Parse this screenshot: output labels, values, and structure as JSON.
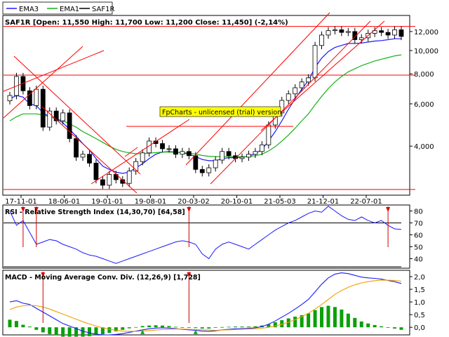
{
  "legend": [
    {
      "name": "EMA3",
      "color": "#1a1aff"
    },
    {
      "name": "EMA1",
      "color": "#18b018"
    },
    {
      "name": "SAF1R",
      "color": "#000000"
    }
  ],
  "header": "SAF1R [Open: 11,550  High: 11,700  Low: 11,200  Close: 11,450] (-2,14%)",
  "watermark": "FpCharts - unlicensed (trial) version",
  "rsi_title": "RSI - Relative Strength Index (14,30,70) [64,58]",
  "macd_title": "MACD - Moving Average Conv. Div. (12,26,9) [1,728]",
  "chart_data": [
    {
      "type": "candlestick",
      "title": "SAF1R [Open: 11,550  High: 11,700  Low: 11,200  Close: 11,450] (-2,14%)",
      "y_scale": "log",
      "ylim": [
        2500,
        14000
      ],
      "y_ticks": [
        4000,
        6000,
        8000,
        10000,
        12000
      ],
      "y_tick_labels": [
        "4,000",
        "6,000",
        "8,000",
        "10,000",
        "12,000"
      ],
      "x_tick_labels": [
        "17-11-01",
        "18-06-01",
        "19-01-01",
        "19-08-01",
        "20-03-02",
        "20-10-01",
        "21-05-03",
        "21-12-01",
        "22-07-01"
      ],
      "horizontal_lines": [
        12600,
        7900,
        2640
      ],
      "close": [
        6500,
        7800,
        6800,
        5900,
        6900,
        4800,
        5600,
        5100,
        5500,
        4300,
        3600,
        3700,
        3400,
        2900,
        2750,
        3050,
        2900,
        2800,
        3150,
        3450,
        3750,
        4200,
        4100,
        3900,
        3900,
        3700,
        3800,
        3650,
        3200,
        3100,
        3250,
        3500,
        3800,
        3650,
        3550,
        3600,
        3700,
        3800,
        4050,
        4900,
        5500,
        6200,
        6600,
        7000,
        7400,
        7700,
        10500,
        11600,
        12100,
        12200,
        11900,
        12000,
        11100,
        11300,
        11800,
        12100,
        11900,
        11600,
        12200,
        11450
      ],
      "series": [
        {
          "name": "EMA3",
          "values": [
            6300,
            6500,
            6400,
            6000,
            5900,
            5500,
            5300,
            5200,
            5000,
            4700,
            4400,
            4100,
            3850,
            3550,
            3300,
            3200,
            3120,
            3080,
            3120,
            3250,
            3380,
            3550,
            3700,
            3780,
            3800,
            3780,
            3750,
            3700,
            3620,
            3520,
            3480,
            3480,
            3550,
            3580,
            3580,
            3600,
            3640,
            3720,
            3880,
            4200,
            4600,
            5100,
            5700,
            6300,
            6900,
            7500,
            8500,
            9300,
            9900,
            10300,
            10500,
            10700,
            10700,
            10750,
            10850,
            10950,
            11000,
            11100,
            11200,
            11200
          ]
        },
        {
          "name": "EMA1",
          "values": [
            5100,
            5300,
            5450,
            5450,
            5450,
            5400,
            5300,
            5200,
            5100,
            4950,
            4800,
            4600,
            4450,
            4300,
            4150,
            4000,
            3880,
            3800,
            3750,
            3720,
            3720,
            3740,
            3760,
            3780,
            3780,
            3770,
            3760,
            3740,
            3700,
            3660,
            3630,
            3620,
            3620,
            3620,
            3610,
            3610,
            3620,
            3650,
            3700,
            3820,
            3980,
            4200,
            4450,
            4750,
            5100,
            5450,
            5950,
            6450,
            6950,
            7400,
            7800,
            8150,
            8400,
            8650,
            8850,
            9050,
            9200,
            9350,
            9500,
            9600
          ]
        }
      ]
    },
    {
      "type": "line",
      "title": "RSI - Relative Strength Index (14,30,70) [64,58]",
      "ylim": [
        32,
        85
      ],
      "y_ticks": [
        40,
        50,
        60,
        70,
        80
      ],
      "levels": [
        70,
        30
      ],
      "series": [
        {
          "name": "RSI",
          "values": [
            80,
            68,
            72,
            62,
            52,
            54,
            56,
            55,
            52,
            50,
            48,
            45,
            43,
            42,
            40,
            38,
            36,
            38,
            40,
            42,
            44,
            46,
            48,
            50,
            52,
            54,
            55,
            54,
            52,
            44,
            40,
            48,
            52,
            54,
            52,
            50,
            48,
            52,
            56,
            60,
            64,
            67,
            70,
            72,
            75,
            78,
            80,
            79,
            84,
            80,
            76,
            73,
            72,
            75,
            72,
            70,
            72,
            68,
            65,
            64.58
          ]
        }
      ]
    },
    {
      "type": "bar+line",
      "title": "MACD - Moving Average Conv. Div. (12,26,9) [1,728]",
      "ylim": [
        -0.3,
        2.25
      ],
      "y_ticks": [
        0.0,
        0.5,
        1.0,
        1.5,
        2.0
      ],
      "y_tick_labels": [
        "0,0",
        "0,5",
        "1,0",
        "1,5",
        "2,0"
      ],
      "series": [
        {
          "name": "MACD",
          "values": [
            1.0,
            1.05,
            0.95,
            0.9,
            0.75,
            0.6,
            0.45,
            0.3,
            0.15,
            0.05,
            -0.05,
            -0.15,
            -0.22,
            -0.27,
            -0.3,
            -0.3,
            -0.28,
            -0.25,
            -0.2,
            -0.15,
            -0.1,
            -0.06,
            -0.03,
            -0.02,
            -0.03,
            -0.05,
            -0.08,
            -0.1,
            -0.12,
            -0.15,
            -0.16,
            -0.14,
            -0.1,
            -0.08,
            -0.06,
            -0.05,
            -0.04,
            -0.02,
            0.03,
            0.12,
            0.25,
            0.4,
            0.55,
            0.72,
            0.9,
            1.1,
            1.4,
            1.7,
            1.95,
            2.1,
            2.15,
            2.12,
            2.05,
            1.98,
            1.95,
            1.93,
            1.9,
            1.85,
            1.8,
            1.728
          ]
        },
        {
          "name": "Signal",
          "values": [
            0.7,
            0.8,
            0.85,
            0.87,
            0.85,
            0.8,
            0.72,
            0.62,
            0.52,
            0.42,
            0.32,
            0.22,
            0.13,
            0.05,
            -0.02,
            -0.08,
            -0.12,
            -0.15,
            -0.16,
            -0.16,
            -0.15,
            -0.13,
            -0.11,
            -0.09,
            -0.08,
            -0.07,
            -0.07,
            -0.08,
            -0.09,
            -0.1,
            -0.11,
            -0.12,
            -0.11,
            -0.1,
            -0.09,
            -0.08,
            -0.07,
            -0.06,
            -0.04,
            0.0,
            0.05,
            0.12,
            0.2,
            0.3,
            0.42,
            0.55,
            0.72,
            0.9,
            1.1,
            1.3,
            1.45,
            1.58,
            1.68,
            1.75,
            1.8,
            1.84,
            1.86,
            1.86,
            1.85,
            1.82
          ]
        },
        {
          "name": "Histogram",
          "values": [
            0.3,
            0.25,
            0.1,
            0.03,
            -0.1,
            -0.2,
            -0.27,
            -0.32,
            -0.37,
            -0.37,
            -0.37,
            -0.37,
            -0.35,
            -0.32,
            -0.28,
            -0.22,
            -0.16,
            -0.1,
            -0.04,
            0.01,
            0.05,
            0.07,
            0.08,
            0.07,
            0.05,
            0.02,
            -0.01,
            -0.02,
            -0.03,
            -0.05,
            -0.05,
            -0.02,
            0.01,
            0.02,
            0.03,
            0.03,
            0.03,
            0.04,
            0.07,
            0.12,
            0.2,
            0.28,
            0.35,
            0.42,
            0.48,
            0.55,
            0.68,
            0.8,
            0.85,
            0.8,
            0.7,
            0.54,
            0.37,
            0.23,
            0.15,
            0.09,
            0.04,
            -0.01,
            -0.05,
            -0.1
          ]
        }
      ]
    }
  ]
}
